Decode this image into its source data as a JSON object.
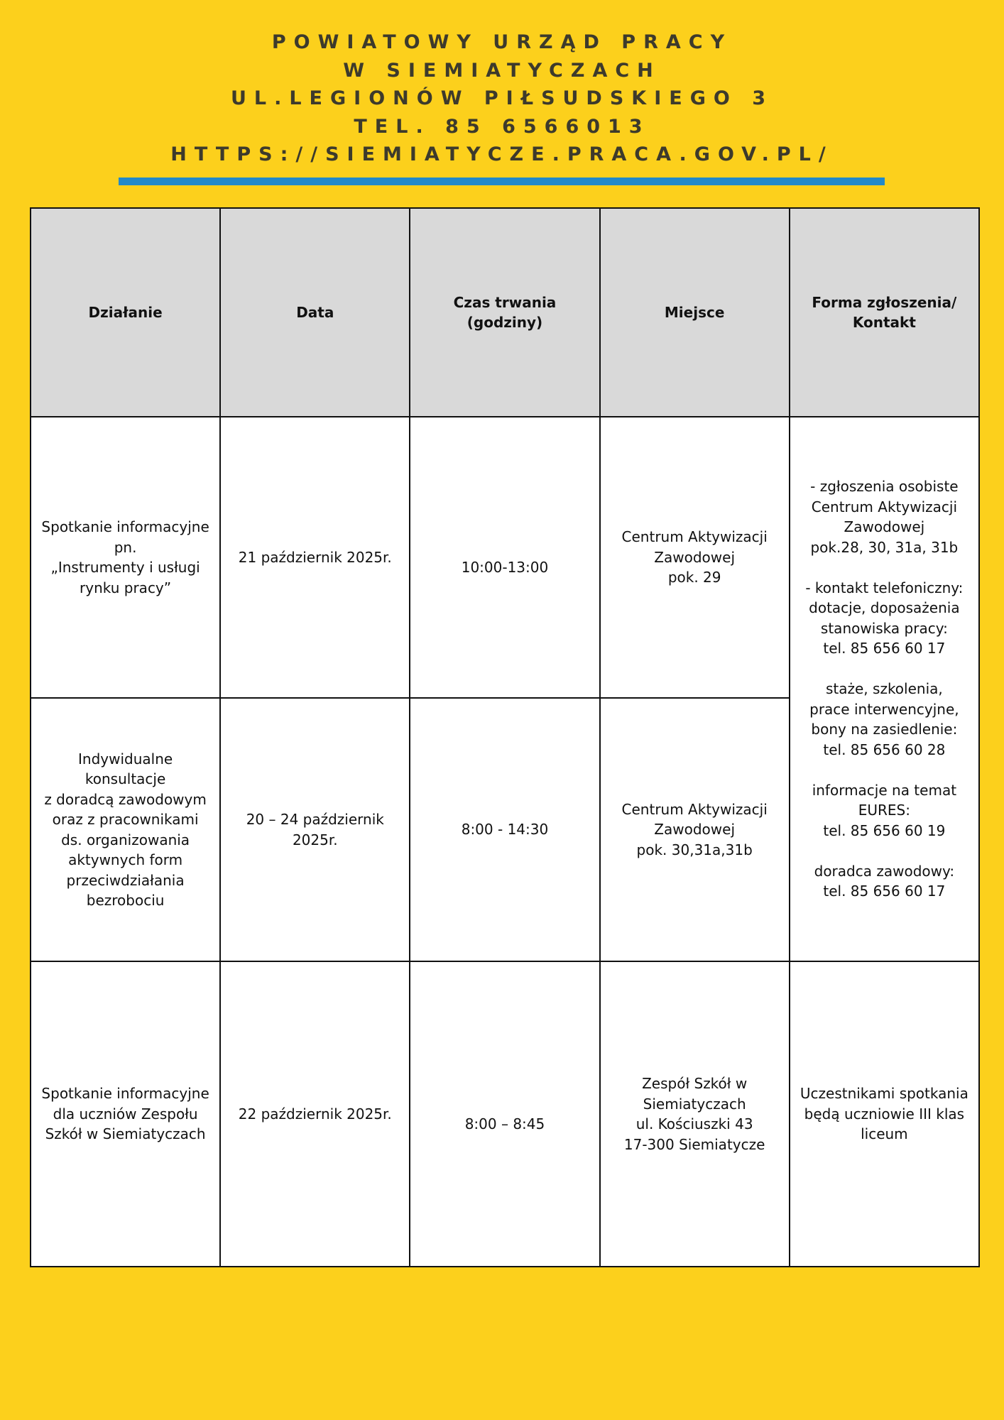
{
  "header": {
    "lines": [
      "POWIATOWY URZĄD PRACY",
      "W SIEMIATYCZACH",
      "UL.LEGIONÓW PIŁSUDSKIEGO 3",
      "TEL. 85 6566013",
      "HTTPS://SIEMIATYCZE.PRACA.GOV.PL/"
    ]
  },
  "colors": {
    "background": "#fcd01c",
    "accent_bar": "#2389c9",
    "header_row": "#d9d9d9",
    "title_text": "#3d3a2c"
  },
  "table": {
    "columns": [
      "Działanie",
      "Data",
      "Czas trwania\n(godziny)",
      "Miejsce",
      "Forma zgłoszenia/\nKontakt"
    ],
    "rows": [
      {
        "action": "Spotkanie informacyjne\npn.\n„Instrumenty i usługi\nrynku pracy”",
        "date": "21 październik 2025r.",
        "duration": "10:00-13:00",
        "place": "Centrum Aktywizacji\nZawodowej\npok. 29"
      },
      {
        "action": "Indywidualne\nkonsultacje\nz doradcą zawodowym\noraz z pracownikami\nds. organizowania\naktywnych form\nprzeciwdziałania\nbezrobociu",
        "date": "20 – 24 październik\n2025r.",
        "duration": "8:00 - 14:30",
        "place": "Centrum Aktywizacji\nZawodowej\npok. 30,31a,31b"
      },
      {
        "action": "Spotkanie informacyjne\ndla uczniów Zespołu\nSzkół w Siemiatyczach",
        "date": "22 październik 2025r.",
        "duration": "8:00 – 8:45",
        "place": "Zespół Szkół w\nSiemiatyczach\nul. Kościuszki 43\n17-300 Siemiatycze",
        "contact": "Uczestnikami spotkania\nbędą uczniowie III klas\nliceum"
      }
    ],
    "shared_contact": "- zgłoszenia osobiste\nCentrum Aktywizacji\nZawodowej\npok.28, 30, 31a, 31b\n\n- kontakt telefoniczny:\ndotacje, doposażenia\nstanowiska pracy:\ntel. 85 656 60 17\n\nstaże, szkolenia,\nprace interwencyjne,\nbony na zasiedlenie:\ntel. 85 656 60 28\n\ninformacje na temat\nEURES:\ntel. 85 656 60 19\n\ndoradca zawodowy:\ntel. 85 656 60 17"
  }
}
